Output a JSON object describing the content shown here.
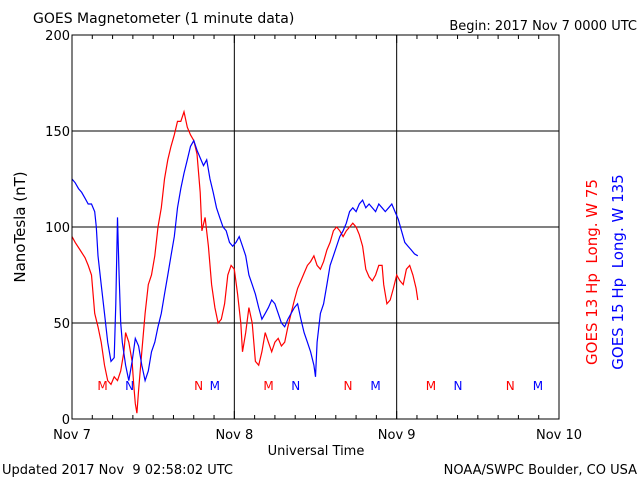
{
  "header": {
    "title": "GOES Magnetometer (1 minute data)",
    "begin": "Begin:  2017 Nov 7 0000 UTC"
  },
  "footer": {
    "updated": "Updated 2017 Nov  9 02:58:02 UTC",
    "source": "NOAA/SWPC Boulder, CO USA"
  },
  "chart_data": {
    "type": "line",
    "ylabel": "NanoTesla (nT)",
    "xlabel": "Universal Time",
    "ylim": [
      0,
      200
    ],
    "xlim": [
      0,
      3
    ],
    "yticks": [
      {
        "v": 0,
        "label": "0"
      },
      {
        "v": 50,
        "label": "50"
      },
      {
        "v": 100,
        "label": "100"
      },
      {
        "v": 150,
        "label": "150"
      },
      {
        "v": 200,
        "label": "200"
      }
    ],
    "xticks": [
      {
        "v": 0,
        "label": "Nov 7"
      },
      {
        "v": 1,
        "label": "Nov 8"
      },
      {
        "v": 2,
        "label": "Nov 9"
      },
      {
        "v": 3,
        "label": "Nov 10"
      }
    ],
    "grid": true,
    "x_units": "days since 2017 Nov 7 0000 UTC",
    "series": [
      {
        "name": "GOES 13 Hp  Long. W 75",
        "color": "#ff0000",
        "points": [
          [
            0.0,
            95
          ],
          [
            0.02,
            92
          ],
          [
            0.05,
            88
          ],
          [
            0.08,
            84
          ],
          [
            0.1,
            80
          ],
          [
            0.12,
            75
          ],
          [
            0.13,
            65
          ],
          [
            0.14,
            55
          ],
          [
            0.16,
            48
          ],
          [
            0.18,
            40
          ],
          [
            0.2,
            28
          ],
          [
            0.22,
            20
          ],
          [
            0.24,
            18
          ],
          [
            0.26,
            22
          ],
          [
            0.28,
            20
          ],
          [
            0.3,
            25
          ],
          [
            0.32,
            35
          ],
          [
            0.33,
            45
          ],
          [
            0.35,
            40
          ],
          [
            0.37,
            30
          ],
          [
            0.38,
            18
          ],
          [
            0.39,
            8
          ],
          [
            0.4,
            3
          ],
          [
            0.41,
            15
          ],
          [
            0.43,
            35
          ],
          [
            0.45,
            55
          ],
          [
            0.47,
            70
          ],
          [
            0.49,
            75
          ],
          [
            0.51,
            85
          ],
          [
            0.53,
            100
          ],
          [
            0.55,
            110
          ],
          [
            0.57,
            125
          ],
          [
            0.59,
            135
          ],
          [
            0.61,
            142
          ],
          [
            0.63,
            148
          ],
          [
            0.65,
            155
          ],
          [
            0.67,
            155
          ],
          [
            0.69,
            160
          ],
          [
            0.71,
            152
          ],
          [
            0.73,
            148
          ],
          [
            0.75,
            145
          ],
          [
            0.77,
            138
          ],
          [
            0.79,
            118
          ],
          [
            0.8,
            98
          ],
          [
            0.82,
            105
          ],
          [
            0.84,
            90
          ],
          [
            0.86,
            70
          ],
          [
            0.88,
            58
          ],
          [
            0.9,
            50
          ],
          [
            0.92,
            52
          ],
          [
            0.94,
            60
          ],
          [
            0.96,
            75
          ],
          [
            0.98,
            80
          ],
          [
            1.0,
            78
          ],
          [
            1.02,
            65
          ],
          [
            1.04,
            50
          ],
          [
            1.05,
            35
          ],
          [
            1.07,
            45
          ],
          [
            1.09,
            58
          ],
          [
            1.11,
            50
          ],
          [
            1.13,
            30
          ],
          [
            1.15,
            28
          ],
          [
            1.17,
            35
          ],
          [
            1.19,
            45
          ],
          [
            1.21,
            40
          ],
          [
            1.23,
            35
          ],
          [
            1.25,
            40
          ],
          [
            1.27,
            42
          ],
          [
            1.29,
            38
          ],
          [
            1.31,
            40
          ],
          [
            1.33,
            48
          ],
          [
            1.35,
            55
          ],
          [
            1.37,
            62
          ],
          [
            1.39,
            68
          ],
          [
            1.41,
            72
          ],
          [
            1.43,
            76
          ],
          [
            1.45,
            80
          ],
          [
            1.47,
            82
          ],
          [
            1.49,
            85
          ],
          [
            1.51,
            80
          ],
          [
            1.53,
            78
          ],
          [
            1.55,
            82
          ],
          [
            1.57,
            88
          ],
          [
            1.59,
            92
          ],
          [
            1.61,
            98
          ],
          [
            1.63,
            100
          ],
          [
            1.65,
            98
          ],
          [
            1.67,
            95
          ],
          [
            1.69,
            98
          ],
          [
            1.71,
            100
          ],
          [
            1.73,
            102
          ],
          [
            1.75,
            100
          ],
          [
            1.77,
            96
          ],
          [
            1.79,
            90
          ],
          [
            1.81,
            78
          ],
          [
            1.83,
            74
          ],
          [
            1.85,
            72
          ],
          [
            1.87,
            75
          ],
          [
            1.89,
            80
          ],
          [
            1.91,
            80
          ],
          [
            1.92,
            70
          ],
          [
            1.94,
            60
          ],
          [
            1.96,
            62
          ],
          [
            1.98,
            68
          ],
          [
            2.0,
            75
          ],
          [
            2.02,
            72
          ],
          [
            2.04,
            70
          ],
          [
            2.06,
            78
          ],
          [
            2.08,
            80
          ],
          [
            2.1,
            75
          ],
          [
            2.12,
            68
          ],
          [
            2.13,
            62
          ]
        ],
        "markers": [
          {
            "x": 0.188,
            "label": "M"
          },
          {
            "x": 0.78,
            "label": "N"
          },
          {
            "x": 1.211,
            "label": "M"
          },
          {
            "x": 1.7,
            "label": "N"
          },
          {
            "x": 2.211,
            "label": "M"
          },
          {
            "x": 2.7,
            "label": "N"
          }
        ]
      },
      {
        "name": "GOES 15 Hp  Long. W 135",
        "color": "#0000ff",
        "points": [
          [
            0.0,
            125
          ],
          [
            0.02,
            123
          ],
          [
            0.04,
            120
          ],
          [
            0.06,
            118
          ],
          [
            0.08,
            115
          ],
          [
            0.1,
            112
          ],
          [
            0.12,
            112
          ],
          [
            0.14,
            108
          ],
          [
            0.15,
            100
          ],
          [
            0.16,
            85
          ],
          [
            0.18,
            70
          ],
          [
            0.2,
            55
          ],
          [
            0.22,
            40
          ],
          [
            0.24,
            30
          ],
          [
            0.26,
            32
          ],
          [
            0.27,
            60
          ],
          [
            0.28,
            105
          ],
          [
            0.29,
            75
          ],
          [
            0.3,
            50
          ],
          [
            0.31,
            40
          ],
          [
            0.33,
            28
          ],
          [
            0.35,
            20
          ],
          [
            0.37,
            30
          ],
          [
            0.39,
            42
          ],
          [
            0.41,
            38
          ],
          [
            0.43,
            28
          ],
          [
            0.45,
            20
          ],
          [
            0.47,
            25
          ],
          [
            0.49,
            35
          ],
          [
            0.51,
            40
          ],
          [
            0.53,
            48
          ],
          [
            0.55,
            55
          ],
          [
            0.57,
            65
          ],
          [
            0.59,
            75
          ],
          [
            0.61,
            85
          ],
          [
            0.63,
            95
          ],
          [
            0.65,
            110
          ],
          [
            0.67,
            120
          ],
          [
            0.69,
            128
          ],
          [
            0.71,
            135
          ],
          [
            0.73,
            142
          ],
          [
            0.75,
            145
          ],
          [
            0.77,
            140
          ],
          [
            0.79,
            136
          ],
          [
            0.81,
            132
          ],
          [
            0.83,
            135
          ],
          [
            0.85,
            125
          ],
          [
            0.87,
            118
          ],
          [
            0.89,
            110
          ],
          [
            0.91,
            105
          ],
          [
            0.93,
            100
          ],
          [
            0.95,
            98
          ],
          [
            0.97,
            92
          ],
          [
            0.99,
            90
          ],
          [
            1.01,
            92
          ],
          [
            1.03,
            95
          ],
          [
            1.05,
            90
          ],
          [
            1.07,
            85
          ],
          [
            1.09,
            75
          ],
          [
            1.11,
            70
          ],
          [
            1.13,
            65
          ],
          [
            1.15,
            58
          ],
          [
            1.17,
            52
          ],
          [
            1.19,
            55
          ],
          [
            1.21,
            58
          ],
          [
            1.23,
            62
          ],
          [
            1.25,
            60
          ],
          [
            1.27,
            55
          ],
          [
            1.29,
            50
          ],
          [
            1.31,
            48
          ],
          [
            1.33,
            52
          ],
          [
            1.35,
            55
          ],
          [
            1.37,
            58
          ],
          [
            1.39,
            60
          ],
          [
            1.41,
            52
          ],
          [
            1.43,
            45
          ],
          [
            1.45,
            40
          ],
          [
            1.47,
            35
          ],
          [
            1.49,
            28
          ],
          [
            1.5,
            22
          ],
          [
            1.51,
            40
          ],
          [
            1.53,
            55
          ],
          [
            1.55,
            60
          ],
          [
            1.57,
            70
          ],
          [
            1.59,
            80
          ],
          [
            1.61,
            85
          ],
          [
            1.63,
            90
          ],
          [
            1.65,
            95
          ],
          [
            1.67,
            98
          ],
          [
            1.69,
            102
          ],
          [
            1.71,
            108
          ],
          [
            1.73,
            110
          ],
          [
            1.75,
            108
          ],
          [
            1.77,
            112
          ],
          [
            1.79,
            114
          ],
          [
            1.81,
            110
          ],
          [
            1.83,
            112
          ],
          [
            1.85,
            110
          ],
          [
            1.87,
            108
          ],
          [
            1.89,
            112
          ],
          [
            1.91,
            110
          ],
          [
            1.93,
            108
          ],
          [
            1.95,
            110
          ],
          [
            1.97,
            112
          ],
          [
            1.99,
            108
          ],
          [
            2.01,
            104
          ],
          [
            2.03,
            98
          ],
          [
            2.05,
            92
          ],
          [
            2.07,
            90
          ],
          [
            2.09,
            88
          ],
          [
            2.11,
            86
          ],
          [
            2.13,
            85
          ]
        ],
        "markers": [
          {
            "x": 0.355,
            "label": "N"
          },
          {
            "x": 0.88,
            "label": "M"
          },
          {
            "x": 1.378,
            "label": "N"
          },
          {
            "x": 1.87,
            "label": "M"
          },
          {
            "x": 2.378,
            "label": "N"
          },
          {
            "x": 2.87,
            "label": "M"
          }
        ]
      }
    ]
  }
}
